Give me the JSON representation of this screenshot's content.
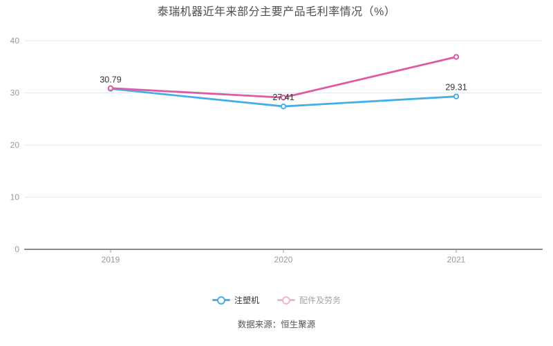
{
  "title": "泰瑞机器近年来部分主要产品毛利率情况（%）",
  "source": "数据来源：恒生聚源",
  "colors": {
    "series1": "#45aee8",
    "series2": "#dd5ba4",
    "grid_line": "#e4e9f4",
    "axis_line": "#5c6570",
    "tick_mark": "#999999",
    "axis_label": "#999999",
    "data_label": "#333333",
    "title_text": "#4e4e4e",
    "source_text": "#555555",
    "legend_text": "#333333"
  },
  "chart_data": {
    "type": "line",
    "title": "泰瑞机器近年来部分主要产品毛利率情况（%）",
    "categories": [
      "2019",
      "2020",
      "2021"
    ],
    "series": [
      {
        "name": "注塑机",
        "color": "#45aee8",
        "values": [
          30.79,
          27.41,
          29.31
        ],
        "data_labels": [
          "30.79",
          "27.41",
          "29.31"
        ],
        "show_labels": true,
        "legend_dimmed": false
      },
      {
        "name": "配件及劳务",
        "color": "#dd5ba4",
        "values": [
          30.9,
          29.1,
          36.9
        ],
        "data_labels": [],
        "show_labels": false,
        "legend_dimmed": true
      }
    ],
    "ylim": [
      0,
      40
    ],
    "yticks": [
      0,
      10,
      20,
      30,
      40
    ],
    "grid": true,
    "legend_position": "bottom",
    "xlabel": "",
    "ylabel": ""
  }
}
